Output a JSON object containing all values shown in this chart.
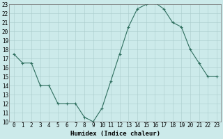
{
  "xlabel": "Humidex (Indice chaleur)",
  "ylabel": "",
  "x": [
    0,
    1,
    2,
    3,
    4,
    5,
    6,
    7,
    8,
    9,
    10,
    11,
    12,
    13,
    14,
    15,
    16,
    17,
    18,
    19,
    20,
    21,
    22,
    23
  ],
  "y": [
    17.5,
    16.5,
    16.5,
    14.0,
    14.0,
    12.0,
    12.0,
    12.0,
    10.5,
    10.0,
    11.5,
    14.5,
    17.5,
    20.5,
    22.5,
    23.0,
    23.2,
    22.5,
    21.0,
    20.5,
    18.0,
    16.5,
    15.0,
    15.0
  ],
  "ylim": [
    10,
    23
  ],
  "xlim": [
    -0.5,
    23.5
  ],
  "yticks": [
    10,
    11,
    12,
    13,
    14,
    15,
    16,
    17,
    18,
    19,
    20,
    21,
    22,
    23
  ],
  "xticks": [
    0,
    1,
    2,
    3,
    4,
    5,
    6,
    7,
    8,
    9,
    10,
    11,
    12,
    13,
    14,
    15,
    16,
    17,
    18,
    19,
    20,
    21,
    22,
    23
  ],
  "line_color": "#2e6e5e",
  "marker_color": "#2e6e5e",
  "bg_color": "#cceaea",
  "grid_color": "#aacccc",
  "xlabel_fontsize": 6.5,
  "tick_fontsize": 5.5
}
